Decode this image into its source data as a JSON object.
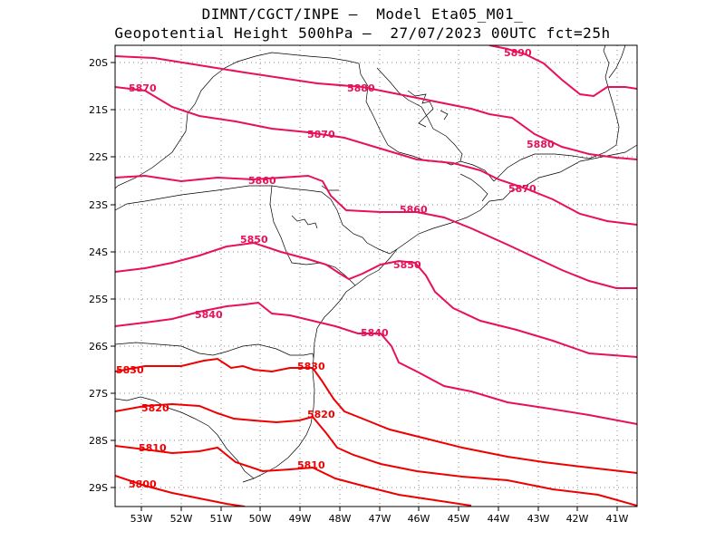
{
  "title": {
    "line1": "DIMNT/CGCT/INPE –  Model Eta05_M01_",
    "line2": "Geopotential Height 500hPa –  27/07/2023 00UTC fct=25h"
  },
  "map": {
    "lat_labels": [
      "20S",
      "21S",
      "22S",
      "23S",
      "24S",
      "25S",
      "26S",
      "27S",
      "28S",
      "29S"
    ],
    "lon_labels": [
      "53W",
      "52W",
      "51W",
      "50W",
      "49W",
      "48W",
      "47W",
      "46W",
      "45W",
      "44W",
      "43W",
      "42W",
      "41W"
    ],
    "contour_labels": [
      "5890",
      "5880",
      "5880",
      "5870",
      "5870",
      "5870",
      "5860",
      "5860",
      "5850",
      "5850",
      "5840",
      "5840",
      "5830",
      "5830",
      "5820",
      "5820",
      "5810",
      "5810",
      "5800"
    ],
    "colors": {
      "contour_warm": "#e8105a",
      "contour_cold": "#ee0000",
      "coast": "#000000",
      "grid": "#888888"
    },
    "grid": "dotted"
  }
}
